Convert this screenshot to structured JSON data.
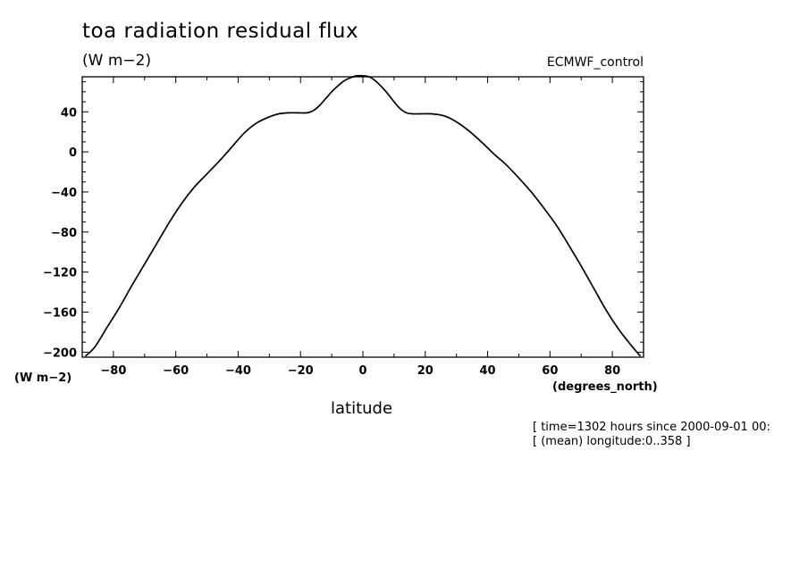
{
  "chart_data": {
    "type": "line",
    "title": "toa radiation residual flux",
    "units": "(W m−2)",
    "run_label": "ECMWF_control",
    "ylabel": "(W m−2)",
    "xlabel": "latitude",
    "xunits": "(degrees_north)",
    "xlim": [
      -90,
      90
    ],
    "ylim": [
      -205,
      75
    ],
    "xticks": [
      -80,
      -60,
      -40,
      -20,
      0,
      20,
      40,
      60,
      80
    ],
    "xtick_labels": [
      "−80",
      "−60",
      "−40",
      "−20",
      "0",
      "20",
      "40",
      "60",
      "80"
    ],
    "yticks": [
      40,
      0,
      -40,
      -80,
      -120,
      -160,
      -200
    ],
    "ytick_labels": [
      "40",
      "0",
      "−40",
      "−80",
      "−120",
      "−160",
      "−200"
    ],
    "grid": false,
    "series": [
      {
        "x": [
          -89,
          -86,
          -82,
          -78,
          -74,
          -70,
          -66,
          -62,
          -58,
          -54,
          -50,
          -46,
          -42,
          -38,
          -34,
          -30,
          -27,
          -24,
          -21,
          -18,
          -16,
          -14,
          -12,
          -10,
          -8,
          -6,
          -4,
          -2,
          0,
          2,
          4,
          6,
          8,
          10,
          12,
          14,
          16,
          18,
          22,
          26,
          30,
          34,
          38,
          42,
          46,
          50,
          54,
          58,
          62,
          66,
          70,
          74,
          78,
          82,
          86,
          89
        ],
        "y": [
          -204,
          -195,
          -175,
          -155,
          -133,
          -112,
          -91,
          -70,
          -51,
          -35,
          -22,
          -9,
          5,
          19,
          29,
          35,
          38,
          39,
          39,
          39,
          41,
          46,
          53,
          60,
          66,
          71,
          74,
          76,
          76,
          75,
          71,
          65,
          58,
          50,
          43,
          39,
          38,
          38,
          38,
          36,
          30,
          21,
          10,
          -2,
          -13,
          -26,
          -40,
          -56,
          -73,
          -93,
          -114,
          -136,
          -158,
          -177,
          -193,
          -204
        ]
      }
    ]
  },
  "info": {
    "line1": "[ time=1302 hours since 2000-09-01 00:",
    "line2": "[ (mean) longitude:0..358 ]"
  }
}
